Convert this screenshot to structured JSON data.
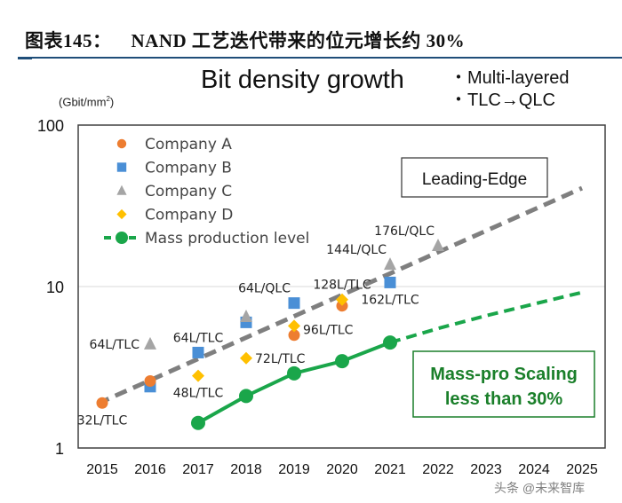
{
  "figure_title": {
    "number": "图表145：",
    "text": "NAND 工艺迭代带来的位元增长约 30%"
  },
  "watermark": "头条 @未来智库",
  "colors": {
    "company_a": "#ed7d31",
    "company_b": "#4a8fd6",
    "company_c": "#a5a5a5",
    "company_d": "#ffc000",
    "mass_production": "#1aa64a",
    "leading_edge_trend": "#7f7f7f",
    "title_rule": "#1f4e79",
    "annotation_green": "#1a7f2a"
  },
  "chart_data": {
    "type": "scatter",
    "title": "Bit density growth",
    "bullets": [
      "・Multi-layered",
      "・TLC→QLC"
    ],
    "ylabel": "(Gbit/mm²)",
    "xlabel": "",
    "yscale": "log",
    "ylim": [
      1,
      100
    ],
    "xlim": [
      2014.5,
      2025.5
    ],
    "yticks": [
      "1",
      "10",
      "100"
    ],
    "ytick_values": [
      1,
      10,
      100
    ],
    "xticks": [
      "2015",
      "2016",
      "2017",
      "2018",
      "2019",
      "2020",
      "2021",
      "2022",
      "2023",
      "2024",
      "2025"
    ],
    "grid": "horizontal at 10",
    "legend_position": "top-left",
    "legend": [
      {
        "key": "company_a",
        "label": "Company A",
        "marker": "circle"
      },
      {
        "key": "company_b",
        "label": "Company B",
        "marker": "square"
      },
      {
        "key": "company_c",
        "label": "Company C",
        "marker": "triangle"
      },
      {
        "key": "company_d",
        "label": "Company D",
        "marker": "diamond"
      },
      {
        "key": "mass_production",
        "label": "Mass production level",
        "marker": "line-circle"
      }
    ],
    "series": [
      {
        "name": "Company A",
        "key": "company_a",
        "marker": "circle",
        "points": [
          [
            2015,
            1.9
          ],
          [
            2016,
            2.6
          ],
          [
            2019,
            5.0
          ],
          [
            2020,
            7.6
          ]
        ]
      },
      {
        "name": "Company B",
        "key": "company_b",
        "marker": "square",
        "points": [
          [
            2016,
            2.4
          ],
          [
            2017,
            3.9
          ],
          [
            2018,
            6.0
          ],
          [
            2019,
            7.9
          ],
          [
            2021,
            10.6
          ]
        ]
      },
      {
        "name": "Company C",
        "key": "company_c",
        "marker": "triangle",
        "points": [
          [
            2016,
            4.4
          ],
          [
            2018,
            6.5
          ],
          [
            2021,
            13.7
          ],
          [
            2022,
            17.9
          ]
        ]
      },
      {
        "name": "Company D",
        "key": "company_d",
        "marker": "diamond",
        "points": [
          [
            2017,
            2.8
          ],
          [
            2018,
            3.6
          ],
          [
            2019,
            5.7
          ],
          [
            2020,
            8.3
          ]
        ]
      },
      {
        "name": "Mass production level",
        "key": "mass_production",
        "marker": "line-circle",
        "points": [
          [
            2017,
            1.43
          ],
          [
            2018,
            2.1
          ],
          [
            2019,
            2.9
          ],
          [
            2020,
            3.45
          ],
          [
            2021,
            4.5
          ]
        ],
        "projection": [
          [
            2021,
            4.5
          ],
          [
            2022,
            5.5
          ],
          [
            2023,
            6.6
          ],
          [
            2024,
            7.8
          ],
          [
            2025,
            9.2
          ]
        ]
      }
    ],
    "trend_lines": [
      {
        "name": "Leading-Edge trend",
        "key": "leading_edge_trend",
        "style": "dashed",
        "points": [
          [
            2014.9,
            1.88
          ],
          [
            2025,
            40.7
          ]
        ]
      }
    ],
    "point_labels": [
      {
        "text": "32L/TLC",
        "x": 2015,
        "y": 1.9,
        "anchor": "below"
      },
      {
        "text": "64L/TLC",
        "x": 2016,
        "y": 4.4,
        "anchor": "left"
      },
      {
        "text": "64L/TLC",
        "x": 2017,
        "y": 3.9,
        "anchor": "above"
      },
      {
        "text": "48L/TLC",
        "x": 2017,
        "y": 2.8,
        "anchor": "below"
      },
      {
        "text": "72L/TLC",
        "x": 2018,
        "y": 3.6,
        "anchor": "right"
      },
      {
        "text": "64L/QLC",
        "x": 2019,
        "y": 7.9,
        "anchor": "above-left"
      },
      {
        "text": "96L/TLC",
        "x": 2019,
        "y": 5.4,
        "anchor": "right"
      },
      {
        "text": "128L/TLC",
        "x": 2020,
        "y": 8.3,
        "anchor": "above"
      },
      {
        "text": "144L/QLC",
        "x": 2021,
        "y": 13.7,
        "anchor": "above-left"
      },
      {
        "text": "162L/TLC",
        "x": 2021,
        "y": 10.6,
        "anchor": "below"
      },
      {
        "text": "176L/QLC",
        "x": 2022,
        "y": 17.9,
        "anchor": "above-left"
      }
    ],
    "annotations": [
      {
        "text": "Leading-Edge",
        "style": "black-box"
      },
      {
        "text_lines": [
          "Mass-pro Scaling",
          "less than 30%"
        ],
        "style": "green-box"
      }
    ]
  }
}
